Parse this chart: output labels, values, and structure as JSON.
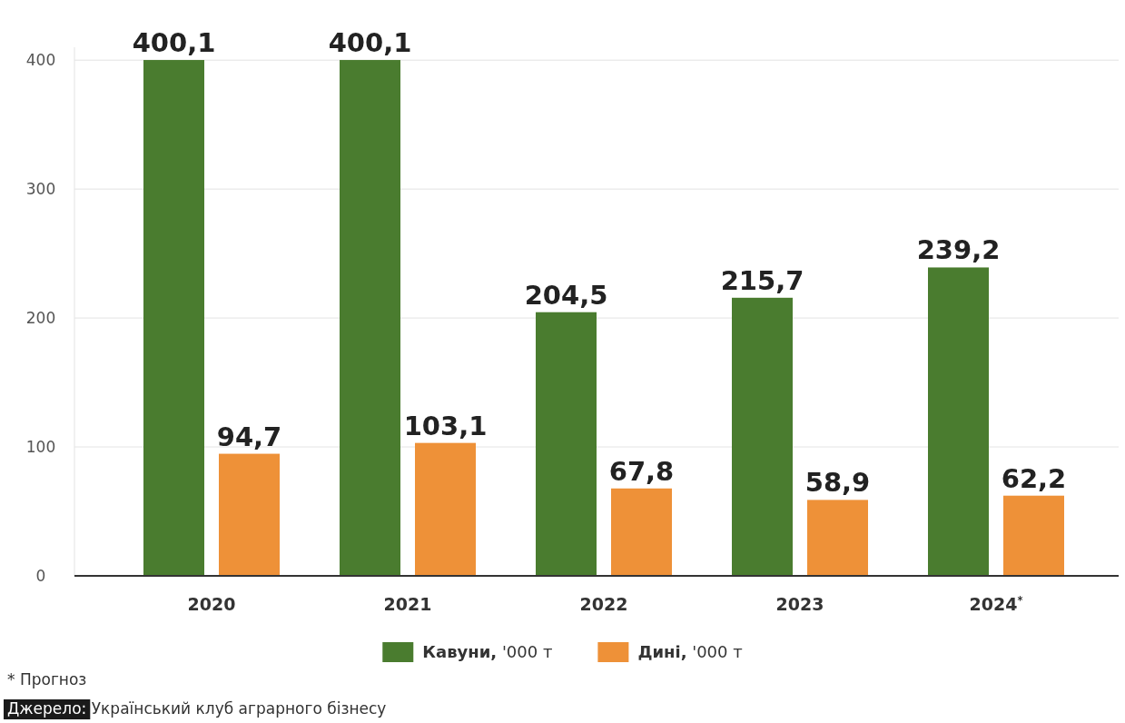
{
  "chart_data": {
    "type": "bar",
    "categories": [
      "2020",
      "2021",
      "2022",
      "2023",
      "2024$^{*}$"
    ],
    "series": [
      {
        "name": "Кавуни, '000 т",
        "color": "#4a7c2f",
        "values": [
          400.1,
          400.1,
          204.5,
          215.7,
          239.2
        ],
        "value_labels": [
          "400,1",
          "400,1",
          "204,5",
          "215,7",
          "239,2"
        ]
      },
      {
        "name": "Дині, '000 т",
        "color": "#ee9138",
        "values": [
          94.7,
          103.1,
          67.8,
          58.9,
          62.2
        ],
        "value_labels": [
          "94,7",
          "103,1",
          "67,8",
          "58,9",
          "62,2"
        ]
      }
    ],
    "ylim": [
      0,
      410
    ],
    "yticks": [
      0,
      100,
      200,
      300,
      400
    ],
    "grid": "y",
    "legend": "bottom",
    "annotations": [
      "* Прогноз",
      "Джерело: Український клуб аграрного бізнесу"
    ]
  }
}
